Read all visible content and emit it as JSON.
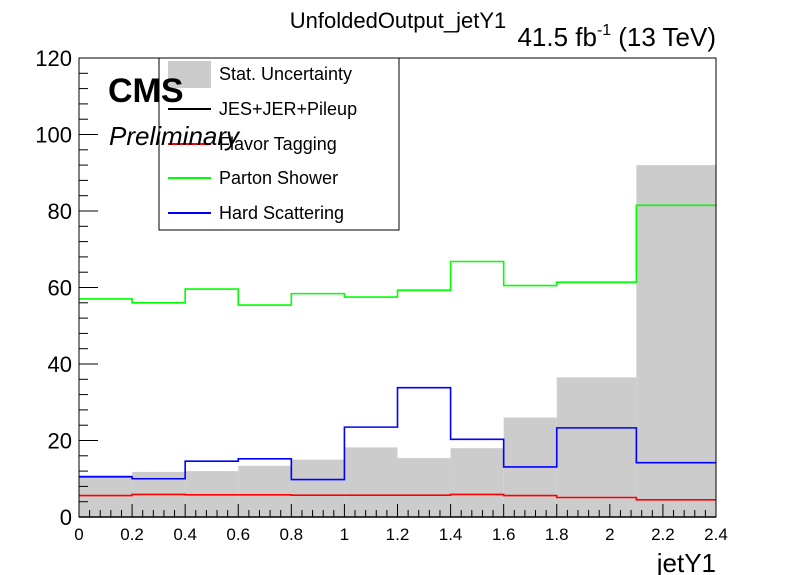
{
  "chart_data": {
    "type": "bar",
    "title": "UnfoldedOutput_jetY1",
    "lumi": "41.5 fb-1 (13 TeV)",
    "lumi_parts": {
      "value": "41.5 fb",
      "exponent": "-1",
      "energy": "(13 TeV)"
    },
    "cms_label": "CMS",
    "preliminary_label": "Preliminary",
    "xlabel": "jetY1",
    "ylabel": "",
    "xlim": [
      0,
      2.4
    ],
    "ylim": [
      0,
      120
    ],
    "x_ticks": [
      "0",
      "0.2",
      "0.4",
      "0.6",
      "0.8",
      "1",
      "1.2",
      "1.4",
      "1.6",
      "1.8",
      "2",
      "2.2",
      "2.4"
    ],
    "y_ticks": [
      "0",
      "20",
      "40",
      "60",
      "80",
      "100",
      "120"
    ],
    "bin_edges": [
      0,
      0.2,
      0.4,
      0.6,
      0.8,
      1.0,
      1.2,
      1.4,
      1.6,
      1.8,
      2.1,
      2.4
    ],
    "legend_position": "top-left",
    "series": [
      {
        "name": "Stat. Uncertainty",
        "style": "fill",
        "color": "#cccccc",
        "values": [
          11,
          11.8,
          12,
          13.4,
          15,
          18.2,
          15.4,
          18,
          26,
          36.5,
          92
        ]
      },
      {
        "name": "JES+JER+Pileup",
        "style": "line",
        "color": "#000000",
        "values": [
          0,
          0,
          0,
          0,
          0,
          0,
          0,
          0,
          0,
          0,
          0
        ]
      },
      {
        "name": "Flavor Tagging",
        "style": "line",
        "color": "#ff0000",
        "values": [
          5.6,
          5.9,
          5.8,
          5.8,
          5.7,
          5.7,
          5.7,
          5.9,
          5.6,
          5.1,
          4.5
        ]
      },
      {
        "name": "Parton Shower",
        "style": "line",
        "color": "#00ff00",
        "values": [
          57,
          56,
          59.6,
          55.4,
          58.4,
          57.5,
          59.3,
          66.8,
          60.5,
          61.4,
          81.5
        ]
      },
      {
        "name": "Hard Scattering",
        "style": "line",
        "color": "#0000ff",
        "values": [
          10.5,
          10,
          14.6,
          15.2,
          9.8,
          23.5,
          33.8,
          20.3,
          13.1,
          23.3,
          14.2
        ]
      }
    ]
  }
}
